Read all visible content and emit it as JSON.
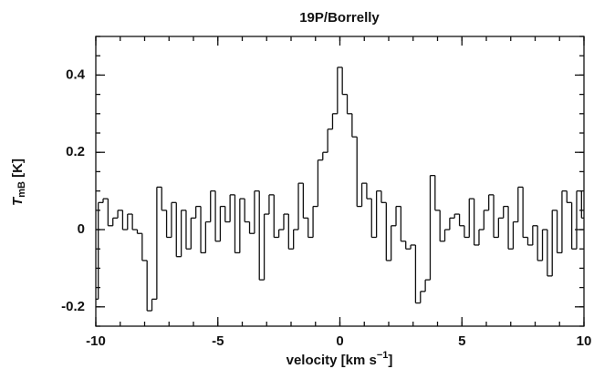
{
  "chart_data": {
    "type": "step",
    "title": "19P/Borrelly",
    "xlabel": {
      "main": "velocity [km s",
      "sup": "−1",
      "end": "]"
    },
    "ylabel": {
      "main": "T",
      "sub": "mB",
      "end": " [K]"
    },
    "xlim": [
      -10,
      10
    ],
    "ylim": [
      -0.25,
      0.5
    ],
    "xticks": [
      -10,
      -5,
      0,
      5,
      10
    ],
    "yticks": [
      -0.2,
      0,
      0.2,
      0.4
    ],
    "color": "#111111",
    "x": [
      -10,
      -9.8,
      -9.6,
      -9.4,
      -9.2,
      -9,
      -8.8,
      -8.6,
      -8.4,
      -8.2,
      -8,
      -7.8,
      -7.6,
      -7.4,
      -7.2,
      -7,
      -6.8,
      -6.6,
      -6.4,
      -6.2,
      -6,
      -5.8,
      -5.6,
      -5.4,
      -5.2,
      -5,
      -4.8,
      -4.6,
      -4.4,
      -4.2,
      -4,
      -3.8,
      -3.6,
      -3.4,
      -3.2,
      -3,
      -2.8,
      -2.6,
      -2.4,
      -2.2,
      -2,
      -1.8,
      -1.6,
      -1.4,
      -1.2,
      -1,
      -0.8,
      -0.6,
      -0.4,
      -0.2,
      0,
      0.2,
      0.4,
      0.6,
      0.8,
      1,
      1.2,
      1.4,
      1.6,
      1.8,
      2,
      2.2,
      2.4,
      2.6,
      2.8,
      3,
      3.2,
      3.4,
      3.6,
      3.8,
      4,
      4.2,
      4.4,
      4.6,
      4.8,
      5,
      5.2,
      5.4,
      5.6,
      5.8,
      6,
      6.2,
      6.4,
      6.6,
      6.8,
      7,
      7.2,
      7.4,
      7.6,
      7.8,
      8,
      8.2,
      8.4,
      8.6,
      8.8,
      9,
      9.2,
      9.4,
      9.6,
      9.8,
      10
    ],
    "values": [
      -0.18,
      0.07,
      0.08,
      0.01,
      0.03,
      0.05,
      0,
      0.04,
      0,
      -0.01,
      -0.08,
      -0.21,
      -0.18,
      0.11,
      0.05,
      -0.02,
      0.07,
      -0.07,
      0.05,
      -0.05,
      0.03,
      0.06,
      -0.06,
      0.02,
      0.1,
      -0.03,
      0.06,
      0.02,
      0.09,
      -0.06,
      0.08,
      0.02,
      -0.01,
      0.1,
      -0.13,
      0.04,
      0.09,
      -0.02,
      0,
      0.04,
      -0.05,
      0,
      0.12,
      0.03,
      -0.02,
      0.06,
      0.18,
      0.2,
      0.26,
      0.3,
      0.42,
      0.35,
      0.3,
      0.24,
      0.06,
      0.12,
      0.08,
      -0.02,
      0.1,
      0.07,
      -0.08,
      0.01,
      0.06,
      -0.03,
      -0.05,
      -0.04,
      -0.19,
      -0.16,
      -0.13,
      0.14,
      0.05,
      -0.03,
      0,
      0.03,
      0.04,
      0.01,
      -0.02,
      0.08,
      -0.04,
      0,
      0.05,
      0.09,
      -0.02,
      0.03,
      0.06,
      -0.05,
      0.02,
      0.11,
      -0.02,
      -0.04,
      0.01,
      -0.08,
      0,
      -0.12,
      0.05,
      -0.06,
      0.1,
      0.07,
      -0.05,
      0.1,
      0.03
    ]
  }
}
